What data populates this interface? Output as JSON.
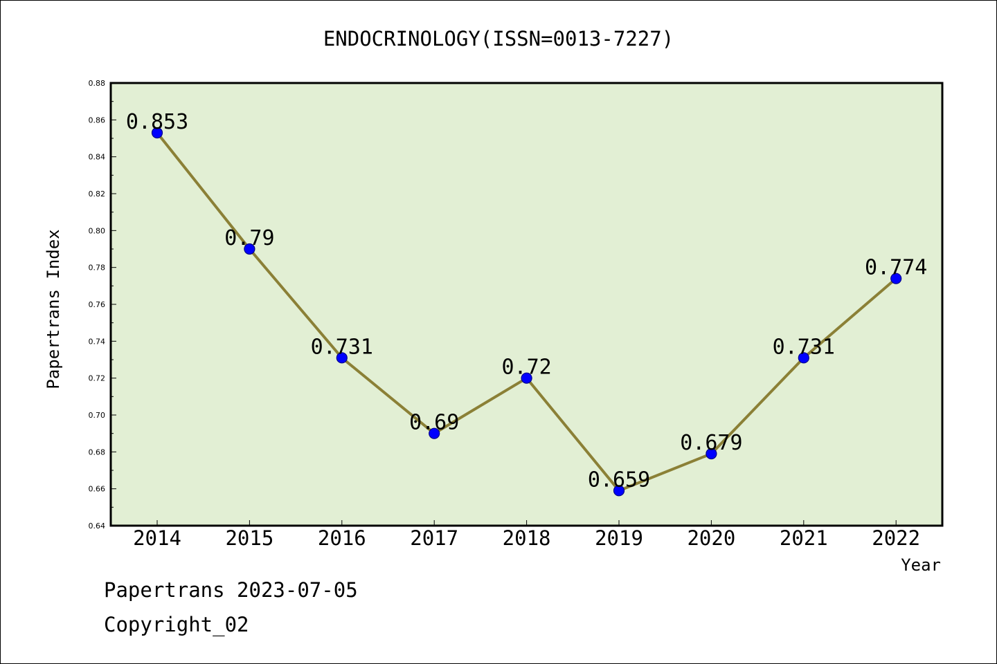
{
  "colors": {
    "plot_background": "#e2efd4",
    "line": "#8b8036",
    "marker": "#0000ff",
    "marker_edge": "#00008b",
    "axis": "#000000"
  },
  "footer": {
    "line1": "Papertrans 2023-07-05",
    "line2": "Copyright_02"
  },
  "chart_data": {
    "type": "line",
    "title": "ENDOCRINOLOGY(ISSN=0013-7227)",
    "xlabel": "Year",
    "ylabel": "Papertrans Index",
    "categories": [
      "2014",
      "2015",
      "2016",
      "2017",
      "2018",
      "2019",
      "2020",
      "2021",
      "2022"
    ],
    "series": [
      {
        "values": [
          0.853,
          0.79,
          0.731,
          0.69,
          0.72,
          0.659,
          0.679,
          0.731,
          0.774
        ],
        "labels": [
          "0.853",
          "0.79",
          "0.731",
          "0.69",
          "0.72",
          "0.659",
          "0.679",
          "0.731",
          "0.774"
        ]
      }
    ],
    "ylim": [
      0.64,
      0.88
    ],
    "yticks": [
      0.64,
      0.66,
      0.68,
      0.7,
      0.72,
      0.74,
      0.76,
      0.78,
      0.8,
      0.82,
      0.84,
      0.86,
      0.88
    ],
    "ytick_labels": [
      "0.64",
      "0.66",
      "0.68",
      "0.70",
      "0.72",
      "0.74",
      "0.76",
      "0.78",
      "0.80",
      "0.82",
      "0.84",
      "0.86",
      "0.88"
    ],
    "grid": false,
    "legend": "none"
  }
}
